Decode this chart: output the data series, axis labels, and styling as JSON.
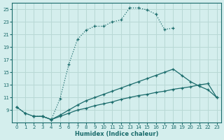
{
  "bg_color": "#d4eeed",
  "grid_color": "#b8d8d5",
  "line_color": "#1a6b6b",
  "xlabel": "Humidex (Indice chaleur)",
  "xlim": [
    -0.5,
    23.5
  ],
  "ylim": [
    7,
    26
  ],
  "yticks": [
    9,
    11,
    13,
    15,
    17,
    19,
    21,
    23,
    25
  ],
  "xticks": [
    0,
    1,
    2,
    3,
    4,
    5,
    6,
    7,
    8,
    9,
    10,
    11,
    12,
    13,
    14,
    15,
    16,
    17,
    18,
    19,
    20,
    21,
    22,
    23
  ],
  "line1_x": [
    0,
    1,
    2,
    3,
    4,
    5,
    6,
    7,
    8,
    9,
    10,
    11,
    12,
    13,
    14,
    15,
    16,
    17,
    18
  ],
  "line1_y": [
    9.5,
    8.5,
    8.0,
    8.0,
    7.5,
    10.8,
    16.2,
    20.2,
    21.7,
    22.3,
    22.3,
    23.0,
    23.3,
    25.2,
    25.2,
    24.9,
    24.2,
    21.8,
    22.0
  ],
  "line2_x": [
    0,
    1,
    2,
    3,
    4,
    5,
    6,
    7,
    8,
    9,
    10,
    11,
    12,
    13,
    14,
    15,
    16,
    17,
    18,
    19,
    20,
    21,
    22,
    23
  ],
  "line2_y": [
    9.5,
    8.5,
    8.0,
    8.0,
    7.5,
    8.2,
    9.0,
    9.8,
    10.5,
    11.0,
    11.5,
    12.0,
    12.5,
    13.0,
    13.5,
    14.0,
    14.5,
    15.0,
    15.5,
    14.5,
    13.5,
    12.8,
    12.2,
    11.0
  ],
  "line3_x": [
    2,
    3,
    4,
    5,
    6,
    7,
    8,
    9,
    10,
    11,
    12,
    13,
    14,
    15,
    16,
    17,
    18,
    19,
    20,
    21,
    22,
    23
  ],
  "line3_y": [
    8.0,
    8.0,
    7.5,
    8.0,
    8.5,
    9.0,
    9.3,
    9.7,
    10.0,
    10.3,
    10.7,
    11.0,
    11.3,
    11.5,
    11.8,
    12.0,
    12.3,
    12.5,
    12.7,
    13.0,
    13.2,
    11.0
  ]
}
